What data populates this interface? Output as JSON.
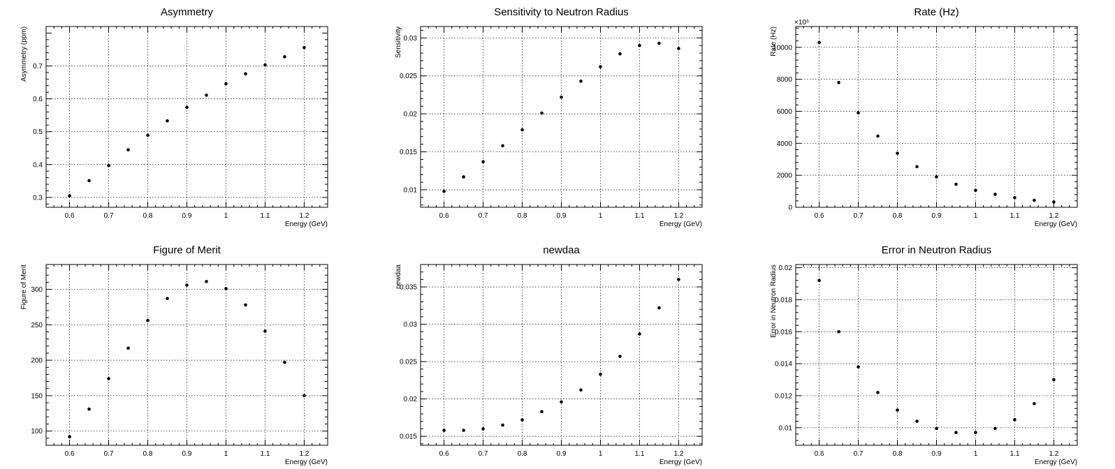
{
  "chart_data": [
    {
      "type": "scatter",
      "title": "Asymmetry",
      "xlabel": "Energy (GeV)",
      "ylabel": "Asymmetry (ppm)",
      "xlim": [
        0.54,
        1.26
      ],
      "ylim": [
        0.27,
        0.82
      ],
      "xticks": [
        "0.6",
        "0.7",
        "0.8",
        "0.9",
        "1",
        "1.1",
        "1.2"
      ],
      "yticks": [
        "0.3",
        "0.4",
        "0.5",
        "0.6",
        "0.7"
      ],
      "grid": true,
      "x": [
        0.6,
        0.65,
        0.7,
        0.75,
        0.8,
        0.85,
        0.9,
        0.95,
        1.0,
        1.05,
        1.1,
        1.15,
        1.2
      ],
      "y": [
        0.305,
        0.351,
        0.397,
        0.445,
        0.489,
        0.533,
        0.574,
        0.611,
        0.646,
        0.676,
        0.703,
        0.728,
        0.756
      ]
    },
    {
      "type": "scatter",
      "title": "Sensitivity to Neutron Radius",
      "xlabel": "Energy (GeV)",
      "ylabel": "Sensitivity",
      "xlim": [
        0.54,
        1.26
      ],
      "ylim": [
        0.0077,
        0.0315
      ],
      "xticks": [
        "0.6",
        "0.7",
        "0.8",
        "0.9",
        "1",
        "1.1",
        "1.2"
      ],
      "yticks": [
        "0.01",
        "0.015",
        "0.02",
        "0.025",
        "0.03"
      ],
      "grid": true,
      "x": [
        0.6,
        0.65,
        0.7,
        0.75,
        0.8,
        0.85,
        0.9,
        0.95,
        1.0,
        1.05,
        1.1,
        1.15,
        1.2
      ],
      "y": [
        0.0098,
        0.0117,
        0.0137,
        0.0158,
        0.0179,
        0.0201,
        0.0222,
        0.0243,
        0.0262,
        0.0279,
        0.029,
        0.0293,
        0.0286
      ]
    },
    {
      "type": "scatter",
      "title": "Rate (Hz)",
      "xlabel": "Energy (GeV)",
      "ylabel": "Rate (Hz)",
      "exponent_label": "×10⁶",
      "xlim": [
        0.54,
        1.26
      ],
      "ylim": [
        0,
        11300
      ],
      "xticks": [
        "0.6",
        "0.7",
        "0.8",
        "0.9",
        "1",
        "1.1",
        "1.2"
      ],
      "yticks": [
        "0",
        "2000",
        "4000",
        "6000",
        "8000",
        "10000"
      ],
      "grid": true,
      "x": [
        0.6,
        0.65,
        0.7,
        0.75,
        0.8,
        0.85,
        0.9,
        0.95,
        1.0,
        1.05,
        1.1,
        1.15,
        1.2
      ],
      "y": [
        10300,
        7800,
        5900,
        4450,
        3380,
        2540,
        1900,
        1440,
        1060,
        810,
        600,
        440,
        330
      ]
    },
    {
      "type": "scatter",
      "title": "Figure of Merit",
      "xlabel": "Energy (GeV)",
      "ylabel": "Figure of Merit",
      "xlim": [
        0.54,
        1.26
      ],
      "ylim": [
        80,
        335
      ],
      "xticks": [
        "0.6",
        "0.7",
        "0.8",
        "0.9",
        "1",
        "1.1",
        "1.2"
      ],
      "yticks": [
        "100",
        "150",
        "200",
        "250",
        "300"
      ],
      "grid": true,
      "x": [
        0.6,
        0.65,
        0.7,
        0.75,
        0.8,
        0.85,
        0.9,
        0.95,
        1.0,
        1.05,
        1.1,
        1.15,
        1.2
      ],
      "y": [
        92,
        131,
        174,
        217,
        256,
        287,
        306,
        311,
        301,
        278,
        241,
        197,
        150
      ]
    },
    {
      "type": "scatter",
      "title": "newdaa",
      "xlabel": "Energy (GeV)",
      "ylabel": "newdaa",
      "xlim": [
        0.54,
        1.26
      ],
      "ylim": [
        0.0138,
        0.038
      ],
      "xticks": [
        "0.6",
        "0.7",
        "0.8",
        "0.9",
        "1",
        "1.1",
        "1.2"
      ],
      "yticks": [
        "0.015",
        "0.02",
        "0.025",
        "0.03",
        "0.035"
      ],
      "grid": true,
      "x": [
        0.6,
        0.65,
        0.7,
        0.75,
        0.8,
        0.85,
        0.9,
        0.95,
        1.0,
        1.05,
        1.1,
        1.15,
        1.2
      ],
      "y": [
        0.0158,
        0.0158,
        0.016,
        0.0165,
        0.0172,
        0.0183,
        0.0196,
        0.0212,
        0.0233,
        0.0257,
        0.0287,
        0.0322,
        0.036
      ]
    },
    {
      "type": "scatter",
      "title": "Error in Neutron Radius",
      "xlabel": "Energy (GeV)",
      "ylabel": "Error in Neutron Radius",
      "xlim": [
        0.54,
        1.26
      ],
      "ylim": [
        0.0089,
        0.0202
      ],
      "xticks": [
        "0.6",
        "0.7",
        "0.8",
        "0.9",
        "1",
        "1.1",
        "1.2"
      ],
      "yticks": [
        "0.01",
        "0.012",
        "0.014",
        "0.016",
        "0.018",
        "0.02"
      ],
      "grid": true,
      "x": [
        0.6,
        0.65,
        0.7,
        0.75,
        0.8,
        0.85,
        0.9,
        0.95,
        1.0,
        1.05,
        1.1,
        1.15,
        1.2
      ],
      "y": [
        0.0192,
        0.016,
        0.0138,
        0.0122,
        0.0111,
        0.0104,
        0.00995,
        0.0097,
        0.0097,
        0.00995,
        0.0105,
        0.0115,
        0.013
      ]
    }
  ]
}
